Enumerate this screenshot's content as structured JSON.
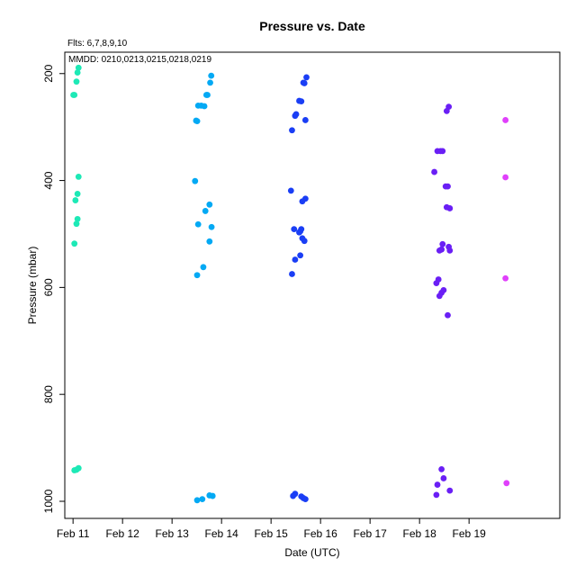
{
  "chart_data": {
    "type": "scatter",
    "title": "Pressure  vs. Date",
    "subtitle": "Flts: 6,7,8,9,10",
    "annotation": "MMDD: 0210,0213,0215,0218,0219",
    "xlabel": "Date (UTC)",
    "ylabel": "Pressure (mbar)",
    "x_axis_type": "date",
    "xlim": [
      "2000-02-10T20:00",
      "2000-02-20T20:00"
    ],
    "ylim": [
      1032,
      160
    ],
    "y_inverted": true,
    "x_ticks": [
      {
        "label": "Feb 11",
        "x": "2000-02-11T00:00"
      },
      {
        "label": "Feb 12",
        "x": "2000-02-12T00:00"
      },
      {
        "label": "Feb 13",
        "x": "2000-02-13T00:00"
      },
      {
        "label": "Feb 14",
        "x": "2000-02-14T00:00"
      },
      {
        "label": "Feb 15",
        "x": "2000-02-15T00:00"
      },
      {
        "label": "Feb 16",
        "x": "2000-02-16T00:00"
      },
      {
        "label": "Feb 17",
        "x": "2000-02-17T00:00"
      },
      {
        "label": "Feb 18",
        "x": "2000-02-18T00:00"
      },
      {
        "label": "Feb 19",
        "x": "2000-02-19T00:00"
      }
    ],
    "y_ticks": [
      {
        "label": "200",
        "y": 200
      },
      {
        "label": "400",
        "y": 400
      },
      {
        "label": "600",
        "y": 600
      },
      {
        "label": "800",
        "y": 800
      },
      {
        "label": "1000",
        "y": 1000
      }
    ],
    "grid": false,
    "series": [
      {
        "flight": "6",
        "date": "0210",
        "color": "#1de9b6",
        "points": [
          [
            "2000-02-11T02:40",
            189
          ],
          [
            "2000-02-11T02:10",
            198
          ],
          [
            "2000-02-11T01:40",
            215
          ],
          [
            "2000-02-11T00:40",
            240
          ],
          [
            "2000-02-11T00:10",
            240
          ],
          [
            "2000-02-11T02:40",
            393
          ],
          [
            "2000-02-11T02:10",
            425
          ],
          [
            "2000-02-11T01:10",
            437
          ],
          [
            "2000-02-11T02:10",
            472
          ],
          [
            "2000-02-11T01:40",
            481
          ],
          [
            "2000-02-11T00:40",
            518
          ],
          [
            "2000-02-11T02:40",
            938
          ],
          [
            "2000-02-11T01:40",
            941
          ],
          [
            "2000-02-11T00:40",
            942
          ]
        ]
      },
      {
        "flight": "7",
        "date": "0213",
        "color": "#03a9f4",
        "points": [
          [
            "2000-02-13T19:00",
            204
          ],
          [
            "2000-02-13T18:30",
            217
          ],
          [
            "2000-02-13T17:10",
            240
          ],
          [
            "2000-02-13T16:40",
            240
          ],
          [
            "2000-02-13T14:10",
            260
          ],
          [
            "2000-02-13T12:40",
            260
          ],
          [
            "2000-02-13T15:40",
            261
          ],
          [
            "2000-02-13T11:40",
            288
          ],
          [
            "2000-02-13T12:10",
            289
          ],
          [
            "2000-02-13T11:10",
            401
          ],
          [
            "2000-02-13T18:10",
            445
          ],
          [
            "2000-02-13T16:10",
            457
          ],
          [
            "2000-02-13T12:40",
            482
          ],
          [
            "2000-02-13T19:10",
            487
          ],
          [
            "2000-02-13T18:10",
            514
          ],
          [
            "2000-02-13T15:10",
            562
          ],
          [
            "2000-02-13T12:10",
            577
          ],
          [
            "2000-02-13T18:10",
            989
          ],
          [
            "2000-02-13T19:40",
            990
          ],
          [
            "2000-02-13T14:40",
            996
          ],
          [
            "2000-02-13T12:10",
            998
          ]
        ]
      },
      {
        "flight": "8",
        "date": "0215",
        "color": "#1a3ef5",
        "points": [
          [
            "2000-02-15T17:10",
            207
          ],
          [
            "2000-02-15T15:40",
            217
          ],
          [
            "2000-02-15T16:10",
            218
          ],
          [
            "2000-02-15T13:40",
            251
          ],
          [
            "2000-02-15T14:40",
            252
          ],
          [
            "2000-02-15T12:10",
            276
          ],
          [
            "2000-02-15T11:40",
            279
          ],
          [
            "2000-02-15T16:40",
            287
          ],
          [
            "2000-02-15T10:10",
            306
          ],
          [
            "2000-02-15T09:40",
            419
          ],
          [
            "2000-02-15T16:40",
            434
          ],
          [
            "2000-02-15T15:10",
            439
          ],
          [
            "2000-02-15T11:10",
            491
          ],
          [
            "2000-02-15T14:40",
            491
          ],
          [
            "2000-02-15T14:10",
            495
          ],
          [
            "2000-02-15T13:40",
            497
          ],
          [
            "2000-02-15T15:10",
            508
          ],
          [
            "2000-02-15T16:10",
            513
          ],
          [
            "2000-02-15T14:10",
            540
          ],
          [
            "2000-02-15T11:40",
            548
          ],
          [
            "2000-02-15T10:10",
            575
          ],
          [
            "2000-02-15T11:40",
            986
          ],
          [
            "2000-02-15T10:40",
            990
          ],
          [
            "2000-02-15T14:40",
            991
          ],
          [
            "2000-02-15T15:40",
            994
          ],
          [
            "2000-02-15T16:40",
            996
          ]
        ]
      },
      {
        "flight": "9",
        "date": "0218",
        "color": "#6a1ff5",
        "points": [
          [
            "2000-02-18T14:10",
            262
          ],
          [
            "2000-02-18T13:10",
            270
          ],
          [
            "2000-02-18T10:10",
            345
          ],
          [
            "2000-02-18T08:40",
            345
          ],
          [
            "2000-02-18T11:10",
            345
          ],
          [
            "2000-02-18T07:10",
            384
          ],
          [
            "2000-02-18T12:40",
            411
          ],
          [
            "2000-02-18T13:40",
            411
          ],
          [
            "2000-02-18T13:10",
            450
          ],
          [
            "2000-02-18T14:40",
            452
          ],
          [
            "2000-02-18T11:10",
            519
          ],
          [
            "2000-02-18T14:10",
            524
          ],
          [
            "2000-02-18T10:40",
            529
          ],
          [
            "2000-02-18T09:40",
            531
          ],
          [
            "2000-02-18T14:40",
            531
          ],
          [
            "2000-02-18T09:10",
            585
          ],
          [
            "2000-02-18T08:10",
            592
          ],
          [
            "2000-02-18T11:40",
            605
          ],
          [
            "2000-02-18T10:40",
            610
          ],
          [
            "2000-02-18T09:40",
            616
          ],
          [
            "2000-02-18T13:40",
            652
          ],
          [
            "2000-02-18T10:40",
            940
          ],
          [
            "2000-02-18T11:40",
            957
          ],
          [
            "2000-02-18T08:40",
            969
          ],
          [
            "2000-02-18T14:40",
            980
          ],
          [
            "2000-02-18T08:10",
            988
          ]
        ]
      },
      {
        "flight": "10",
        "date": "0219",
        "color": "#e040fb",
        "points": [
          [
            "2000-02-19T17:40",
            287
          ],
          [
            "2000-02-19T17:40",
            394
          ],
          [
            "2000-02-19T17:40",
            583
          ],
          [
            "2000-02-19T18:10",
            966
          ]
        ]
      }
    ]
  }
}
